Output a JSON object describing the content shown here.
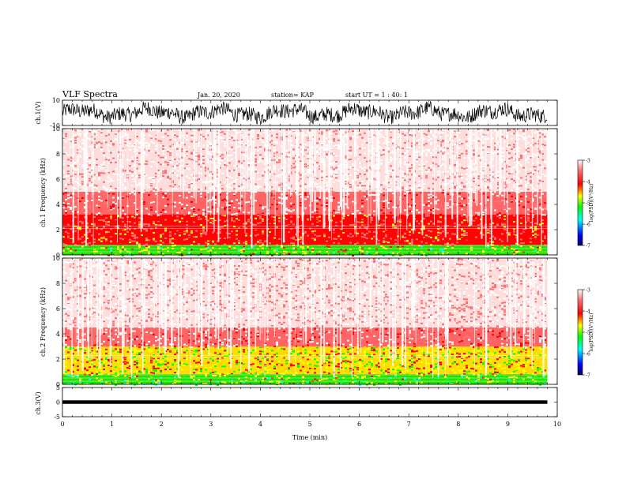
{
  "header": {
    "title": "VLF Spectra",
    "date": "Jan. 20, 2020",
    "station": "station= KAP",
    "start": "start UT =  1 : 40: 1"
  },
  "chart_data": [
    {
      "type": "line",
      "panel": "ch1-waveform",
      "ylabel": "ch.1(V)",
      "ylim": [
        -10,
        10
      ],
      "ytick_labels": [
        "10",
        "-10"
      ],
      "xlim": [
        0,
        10
      ],
      "series": [
        {
          "values_description_free": true,
          "x": [
            0,
            9.8
          ],
          "y_range": [
            -8,
            8
          ]
        }
      ]
    },
    {
      "type": "heatmap",
      "panel": "ch1-spectrogram",
      "ylabel": "ch.1  Frequency  (kHz)",
      "ylim": [
        0,
        10
      ],
      "ytick_labels": [
        "10",
        "8",
        "6",
        "4",
        "2",
        "0"
      ],
      "xlim": [
        0,
        10
      ],
      "data_end_min": 9.8,
      "colorbar": {
        "label": "log(PSD)(V²/Hz)",
        "range": [
          -7,
          -3
        ],
        "ticks": [
          "-3",
          "-4",
          "-5",
          "-6",
          "-7"
        ]
      },
      "bands": [
        {
          "from_khz": 0,
          "to_khz": 0.8,
          "level": -5.2
        },
        {
          "from_khz": 0.8,
          "to_khz": 3.2,
          "level": -4.2
        },
        {
          "from_khz": 3.2,
          "to_khz": 5.0,
          "level": -3.7
        },
        {
          "from_khz": 5.0,
          "to_khz": 10,
          "level": -3.3
        }
      ]
    },
    {
      "type": "heatmap",
      "panel": "ch2-spectrogram",
      "ylabel": "ch.2  Frequency  (kHz)",
      "ylim": [
        0,
        10
      ],
      "ytick_labels": [
        "10",
        "8",
        "6",
        "4",
        "2",
        "0"
      ],
      "xlim": [
        0,
        10
      ],
      "data_end_min": 9.8,
      "colorbar": {
        "label": "log(PSD)(V²/Hz)",
        "range": [
          -7,
          -3
        ],
        "ticks": [
          "-3",
          "-4",
          "-5",
          "-6",
          "-7"
        ]
      },
      "bands": [
        {
          "from_khz": 0,
          "to_khz": 0.8,
          "level": -5.3
        },
        {
          "from_khz": 0.8,
          "to_khz": 3.0,
          "level": -4.9
        },
        {
          "from_khz": 3.0,
          "to_khz": 4.5,
          "level": -3.8
        },
        {
          "from_khz": 4.5,
          "to_khz": 10,
          "level": -3.4
        }
      ]
    },
    {
      "type": "line",
      "panel": "ch3-waveform",
      "ylabel": "ch.3(V)",
      "ylim": [
        -5,
        5
      ],
      "ytick_labels": [
        "5",
        "0",
        "-5"
      ],
      "xlim": [
        0,
        10
      ],
      "xlabel": "Time  (min)",
      "xtick_labels": [
        "0",
        "1",
        "2",
        "3",
        "4",
        "5",
        "6",
        "7",
        "8",
        "9",
        "10"
      ],
      "series": [
        {
          "x": [
            0,
            9.8
          ],
          "y_range": [
            -0.6,
            0.6
          ]
        }
      ]
    }
  ],
  "colors": {
    "colormap": [
      "#000080",
      "#0000ff",
      "#00ffff",
      "#00ff00",
      "#ffff00",
      "#ff0000",
      "#ffffff"
    ]
  }
}
